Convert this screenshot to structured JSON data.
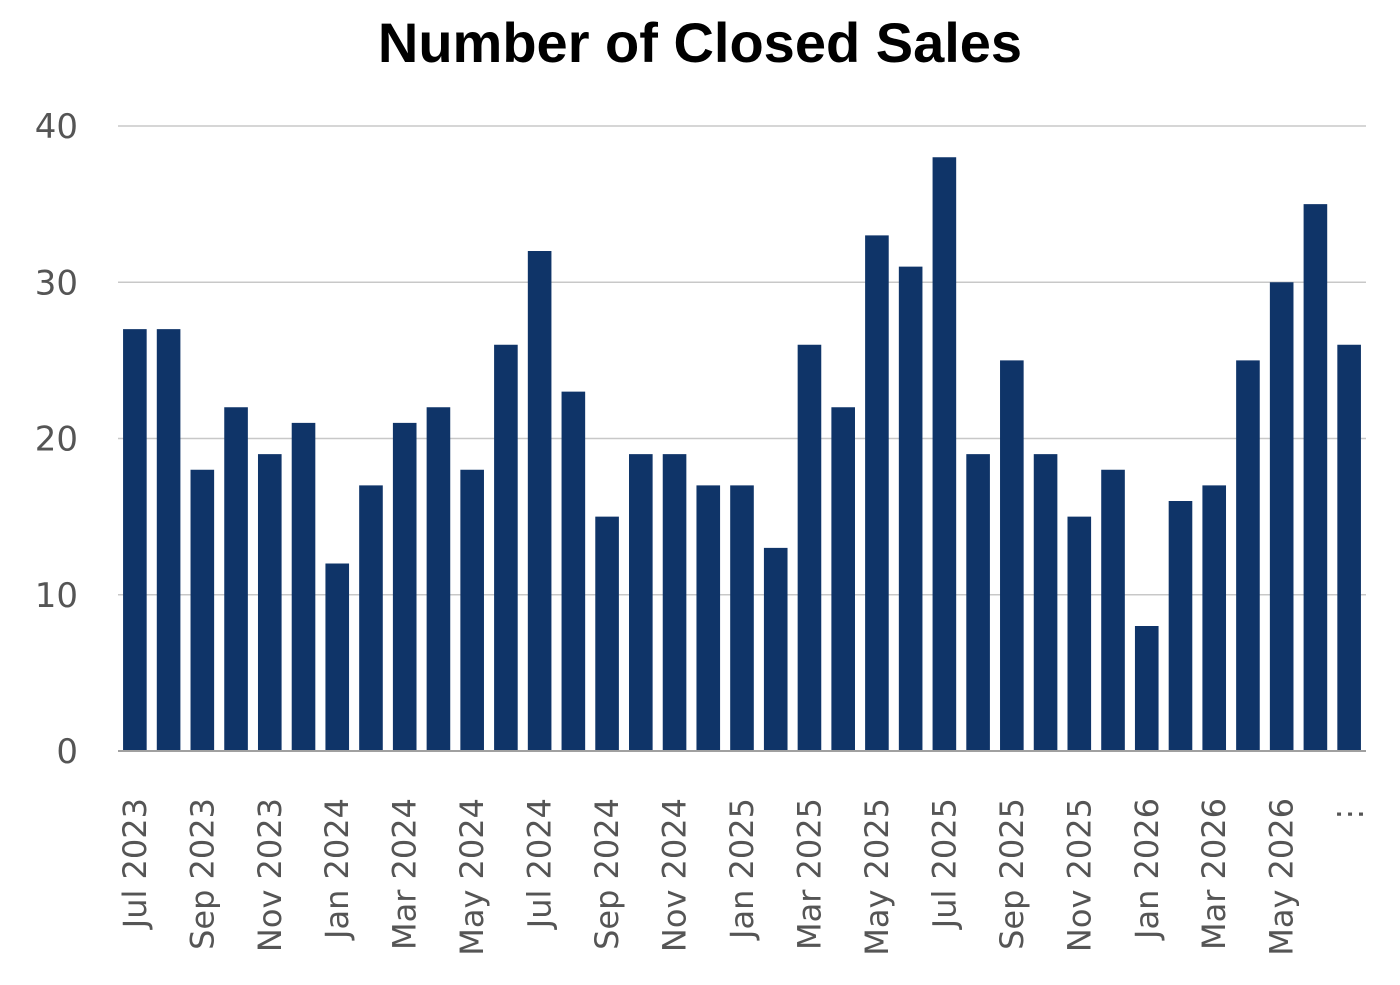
{
  "chart_data": {
    "type": "bar",
    "title": "Number of Closed Sales",
    "xlabel": "",
    "ylabel": "",
    "ylim": [
      0,
      40
    ],
    "yticks": [
      0,
      10,
      20,
      30,
      40
    ],
    "grid": true,
    "legend": "none",
    "bar_color": "#0f3468",
    "categories": [
      "Jul 2023",
      "Aug 2023",
      "Sep 2023",
      "Oct 2023",
      "Nov 2023",
      "Dec 2023",
      "Jan 2024",
      "Feb 2024",
      "Mar 2024",
      "Apr 2024",
      "May 2024",
      "Jun 2024",
      "Jul 2024",
      "Aug 2024",
      "Sep 2024",
      "Oct 2024",
      "Nov 2024",
      "Dec 2024",
      "Jan 2025",
      "Feb 2025",
      "Mar 2025",
      "Apr 2025",
      "May 2025",
      "Jun 2025",
      "Jul 2025",
      "Aug 2025",
      "Sep 2025",
      "Oct 2025",
      "Nov 2025",
      "Dec 2025",
      "Jan 2026",
      "Feb 2026",
      "Mar 2026",
      "Apr 2026",
      "May 2026",
      "Jun 2026",
      "Jul 2026"
    ],
    "values": [
      27,
      27,
      18,
      22,
      19,
      21,
      12,
      17,
      21,
      22,
      18,
      26,
      32,
      23,
      15,
      19,
      19,
      17,
      17,
      13,
      26,
      22,
      33,
      31,
      38,
      19,
      25,
      19,
      15,
      18,
      8,
      16,
      17,
      25,
      30,
      35,
      26
    ],
    "tick_labels": [
      "Jul 2023",
      "Sep 2023",
      "Nov 2023",
      "Jan 2024",
      "Mar 2024",
      "May 2024",
      "Jul 2024",
      "Sep 2024",
      "Nov 2024",
      "Jan 2025",
      "Mar 2025",
      "May 2025",
      "Jul 2025",
      "Sep 2025",
      "Nov 2025",
      "Jan 2026",
      "Mar 2026",
      "May 2026",
      "⋮"
    ]
  }
}
